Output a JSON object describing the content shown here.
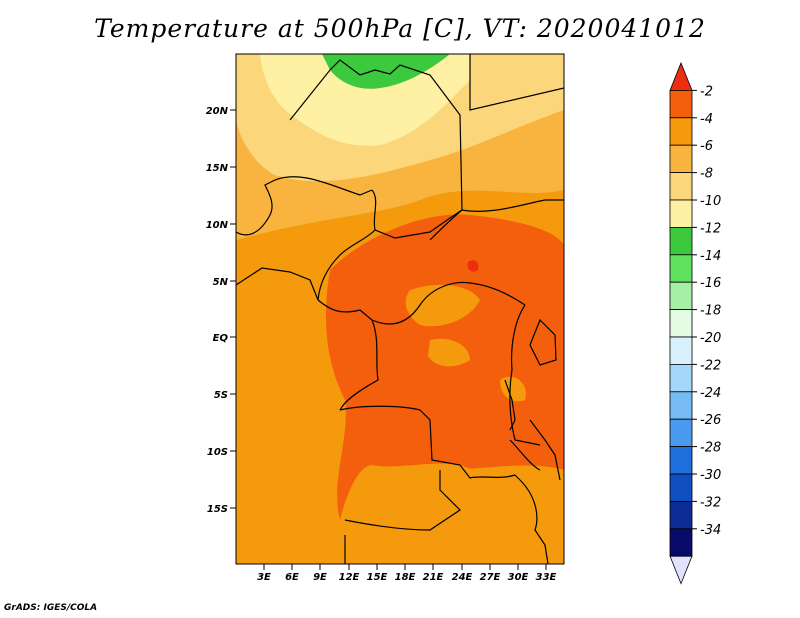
{
  "title": "Temperature at 500hPa [C], VT: 2020041012",
  "credit": "GrADS: IGES/COLA",
  "map": {
    "lat_labels": [
      "20N",
      "15N",
      "10N",
      "5N",
      "EQ",
      "5S",
      "10S",
      "15S"
    ],
    "lon_labels": [
      "3E",
      "6E",
      "9E",
      "12E",
      "15E",
      "18E",
      "21E",
      "24E",
      "27E",
      "30E",
      "33E"
    ]
  },
  "colorbar": {
    "labels": [
      "-2",
      "-4",
      "-6",
      "-8",
      "-10",
      "-12",
      "-14",
      "-16",
      "-18",
      "-20",
      "-22",
      "-24",
      "-26",
      "-28",
      "-30",
      "-32",
      "-34"
    ],
    "colors": [
      "#ee2c10",
      "#f35f0c",
      "#f59a0c",
      "#f9b440",
      "#fcd67a",
      "#fff1a4",
      "#3dc93d",
      "#5fe35f",
      "#a4f0a4",
      "#e4fbe4",
      "#d9f1fd",
      "#a5d7fb",
      "#77bbf5",
      "#4a9bf0",
      "#1f6fdc",
      "#0f4fc0",
      "#0a2c94",
      "#0a0a6a",
      "#e2e2ff"
    ]
  }
}
